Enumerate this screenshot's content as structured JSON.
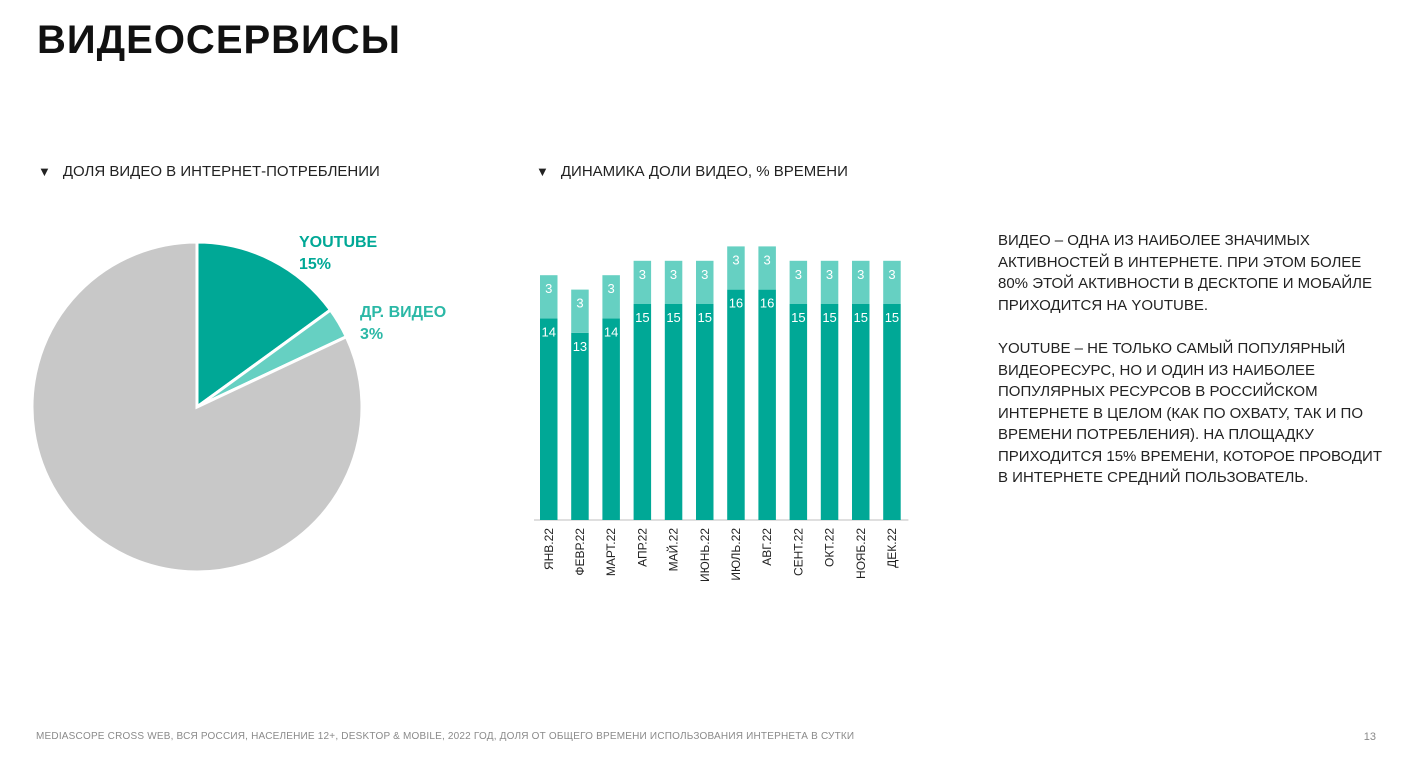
{
  "page": {
    "title": "ВИДЕОСЕРВИСЫ",
    "page_number": "13",
    "footer": "MEDIASCOPE CROSS WEB, ВСЯ РОССИЯ, НАСЕЛЕНИЕ 12+, DESKTOP & MOBILE, 2022 ГОД, ДОЛЯ ОТ ОБЩЕГО ВРЕМЕНИ ИСПОЛЬЗОВАНИЯ ИНТЕРНЕТА В СУТКИ"
  },
  "sections": {
    "pie_heading": "ДОЛЯ ВИДЕО В ИНТЕРНЕТ-ПОТРЕБЛЕНИИ",
    "bar_heading": "ДИНАМИКА ДОЛИ ВИДЕО, % ВРЕМЕНИ",
    "triangle": "▼"
  },
  "description": {
    "paragraph1": "ВИДЕО – ОДНА ИЗ НАИБОЛЕЕ ЗНАЧИМЫХ АКТИВНОСТЕЙ В ИНТЕРНЕТЕ. ПРИ ЭТОМ БОЛЕЕ 80% ЭТОЙ АКТИВНОСТИ В ДЕСКТОПЕ И МОБАЙЛЕ ПРИХОДИТСЯ НА YOUTUBE.",
    "paragraph2": "YOUTUBE – НЕ ТОЛЬКО САМЫЙ ПОПУЛЯРНЫЙ ВИДЕОРЕСУРС, НО И ОДИН ИЗ НАИБОЛЕЕ ПОПУЛЯРНЫХ РЕСУРСОВ В РОССИЙСКОМ ИНТЕРНЕТЕ В ЦЕЛОМ (КАК ПО ОХВАТУ, ТАК И ПО ВРЕМЕНИ ПОТРЕБЛЕНИЯ). НА ПЛОЩАДКУ ПРИХОДИТСЯ 15% ВРЕМЕНИ, КОТОРОЕ ПРОВОДИТ В ИНТЕРНЕТЕ СРЕДНИЙ ПОЛЬЗОВАТЕЛЬ."
  },
  "colors": {
    "youtube": "#00a896",
    "other_video": "#66d0c2",
    "rest": "#c8c8c8",
    "youtube_label": "#00a896",
    "other_label": "#2bb8a6"
  },
  "chart_data": [
    {
      "type": "pie",
      "slices": [
        {
          "name": "YOUTUBE",
          "label": "15%",
          "value": 15,
          "color": "#00a896"
        },
        {
          "name": "ДР. ВИДЕО",
          "label": "3%",
          "value": 3,
          "color": "#66d0c2"
        },
        {
          "name": "",
          "label": "",
          "value": 82,
          "color": "#c8c8c8"
        }
      ]
    },
    {
      "type": "bar",
      "stacked": true,
      "categories": [
        "ЯНВ.22",
        "ФЕВР.22",
        "МАРТ.22",
        "АПР.22",
        "МАЙ.22",
        "ИЮНЬ.22",
        "ИЮЛЬ.22",
        "АВГ.22",
        "СЕНТ.22",
        "ОКТ.22",
        "НОЯБ.22",
        "ДЕК.22"
      ],
      "series": [
        {
          "values": [
            14,
            13,
            14,
            15,
            15,
            15,
            16,
            16,
            15,
            15,
            15,
            15
          ],
          "color": "#00a896"
        },
        {
          "values": [
            3,
            3,
            3,
            3,
            3,
            3,
            3,
            3,
            3,
            3,
            3,
            3
          ],
          "color": "#66d0c2"
        }
      ],
      "ylim": [
        0,
        19
      ]
    }
  ]
}
